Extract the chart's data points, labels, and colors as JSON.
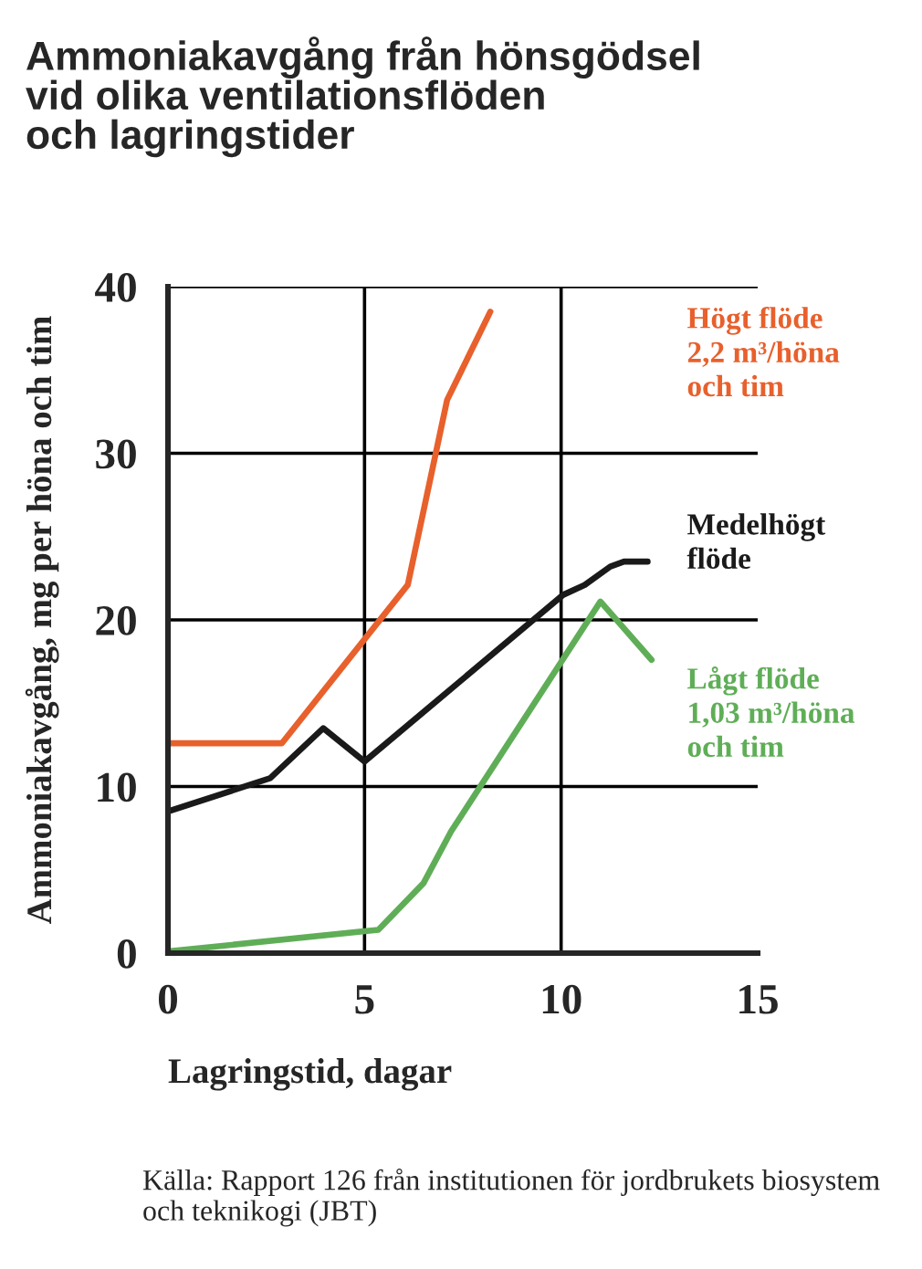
{
  "chart_data": {
    "type": "line",
    "title": "Ammoniakavgång från hönsgödsel\nvid olika ventilationsflöden\noch lagringstider",
    "xlabel": "Lagringstid, dagar",
    "ylabel": "Ammoniakavgång, mg per höna och tim",
    "series": [
      {
        "name": "Högt flöde\n2,2 m³/höna\noch tim",
        "color": "#e8602c",
        "x": [
          0,
          2.9,
          6.1,
          7.1,
          8.2
        ],
        "values": [
          12.6,
          12.6,
          22.1,
          33.2,
          38.5
        ]
      },
      {
        "name": "Medelhögt\nflöde",
        "color": "#1a1a1a",
        "x": [
          0,
          2.6,
          3.95,
          5.0,
          10.05,
          10.6,
          11.25,
          11.6,
          12.2
        ],
        "values": [
          8.5,
          10.5,
          13.5,
          11.5,
          21.5,
          22.1,
          23.2,
          23.5,
          23.5
        ]
      },
      {
        "name": "Lågt flöde\n1,03 m³/höna\noch tim",
        "color": "#5fae57",
        "x": [
          0,
          5.35,
          6.5,
          7.2,
          11.0,
          12.3
        ],
        "values": [
          0.1,
          1.4,
          4.2,
          7.3,
          21.1,
          17.6
        ]
      }
    ],
    "xlim": [
      0,
      15
    ],
    "xticks": [
      0,
      5,
      10,
      15
    ],
    "ylim": [
      0,
      40
    ],
    "yticks": [
      0,
      10,
      20,
      30,
      40
    ],
    "grid": true,
    "marker": "none",
    "line_style": "solid",
    "legend": false,
    "annotations": [
      "Källa: Rapport 126 från institutionen för jordbrukets biosystem och teknikogi (JBT)"
    ]
  }
}
